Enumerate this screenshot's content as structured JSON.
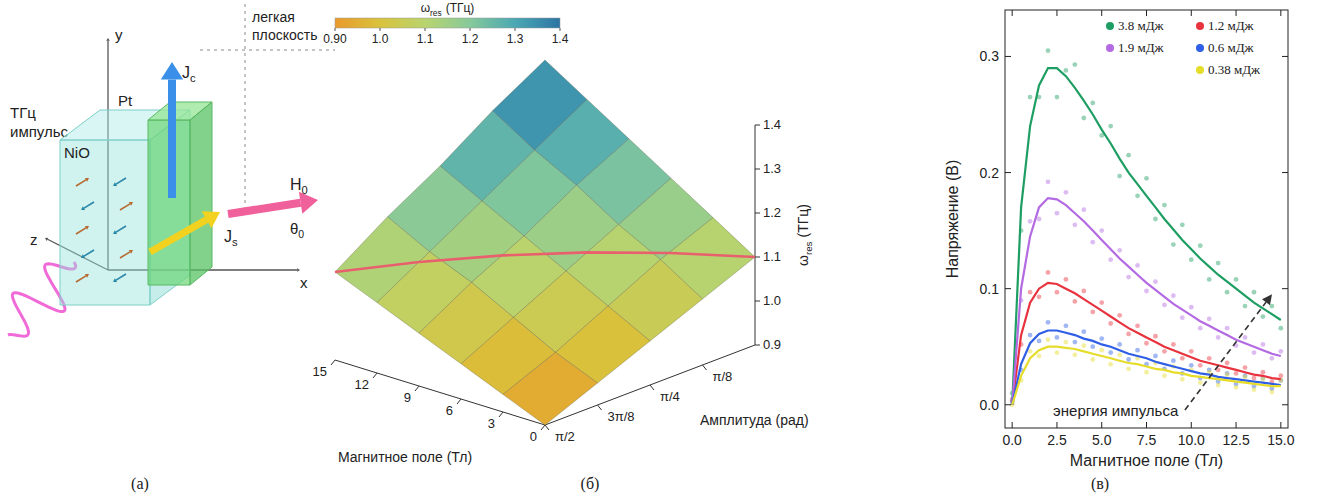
{
  "figure": {
    "panel_labels": [
      "(а)",
      "(б)",
      "(в)"
    ]
  },
  "diagram": {
    "source_label": "ТГц импульс",
    "layers": [
      "NiO",
      "Pt"
    ],
    "plane_label": "легкая плоскость",
    "axes": [
      "x",
      "y",
      "z"
    ],
    "vectors": [
      {
        "main": "J",
        "sub": "c"
      },
      {
        "main": "J",
        "sub": "s"
      },
      {
        "main": "H",
        "sub": "0"
      }
    ],
    "angle": {
      "main": "θ",
      "sub": "0"
    }
  },
  "chart_data": [
    {
      "type": "surface",
      "xlabel": "Магнитное поле (Тл)",
      "xlim": [
        0,
        15
      ],
      "xticks": [
        0,
        3,
        6,
        9,
        12,
        15
      ],
      "ylabel": "Амплитуда (рад)",
      "ylim": [
        0,
        1.5708
      ],
      "yticks": [
        {
          "value": 0.3927,
          "label": "π/8"
        },
        {
          "value": 0.7854,
          "label": "π/4"
        },
        {
          "value": 1.1781,
          "label": "3π/8"
        },
        {
          "value": 1.5708,
          "label": "π/2"
        }
      ],
      "zlabel": {
        "symbol": "ω",
        "sub": "res",
        "unit": "(ТГц)"
      },
      "zlim": [
        0.9,
        1.4
      ],
      "zticks": [
        0.9,
        {
          "value": 1.0,
          "label": "1.0"
        },
        1.1,
        1.2,
        1.3,
        1.4
      ],
      "x": [
        0,
        3,
        6,
        9,
        12,
        15
      ],
      "y": [
        0,
        0.3927,
        0.7854,
        1.1781,
        1.5708
      ],
      "surface": [
        [
          1.1,
          1.16,
          1.22,
          1.28,
          1.34,
          1.4
        ],
        [
          1.05,
          1.11,
          1.16,
          1.22,
          1.27,
          1.33
        ],
        [
          1.0,
          1.05,
          1.1,
          1.15,
          1.2,
          1.25
        ],
        [
          0.95,
          0.99,
          1.04,
          1.09,
          1.13,
          1.18
        ],
        [
          0.9,
          0.94,
          0.98,
          1.02,
          1.06,
          1.1
        ]
      ],
      "line": {
        "color": "#e8606e",
        "x": [
          15,
          12,
          9,
          6,
          3,
          0
        ],
        "y": [
          1.5708,
          1.2566,
          0.9425,
          0.6283,
          0.3142,
          0
        ],
        "z": [
          1.1,
          1.116,
          1.124,
          1.124,
          1.116,
          1.1
        ]
      },
      "colorbar": {
        "label": {
          "symbol": "ω",
          "sub": "res",
          "unit": "(ТГц)"
        },
        "range": [
          0.9,
          1.4
        ],
        "ticks": [
          {
            "value": 0.9,
            "label": "0.90"
          },
          {
            "value": 1.0,
            "label": "1.0"
          },
          1.1,
          1.2,
          1.3,
          1.4
        ]
      }
    },
    {
      "type": "scatter",
      "xlabel": "Магнитное поле (Тл)",
      "ylabel": "Напряжение (В)",
      "xlim": [
        -0.4,
        15.4
      ],
      "xticks": [
        {
          "value": 0,
          "label": "0.0"
        },
        2.5,
        {
          "value": 5,
          "label": "5.0"
        },
        7.5,
        {
          "value": 10,
          "label": "10.0"
        },
        12.5,
        {
          "value": 15,
          "label": "15.0"
        }
      ],
      "ylim": [
        -0.02,
        0.34
      ],
      "yticks": [
        {
          "value": 0,
          "label": "0.0"
        },
        0.1,
        0.2,
        0.3
      ],
      "legend": "upper right",
      "annotation": "энергия импульса",
      "x": [
        0,
        0.5,
        1,
        1.5,
        2,
        2.5,
        3,
        3.5,
        4,
        4.5,
        5,
        5.5,
        6,
        6.5,
        7,
        7.5,
        8,
        8.5,
        9,
        9.5,
        10,
        10.5,
        11,
        11.5,
        12,
        12.5,
        13,
        13.5,
        14,
        14.5,
        15
      ],
      "series": [
        {
          "name": "3.8 мДж",
          "color": "#1e9e62",
          "marker": "circle",
          "values": [
            0.01,
            0.15,
            0.265,
            0.265,
            0.305,
            0.265,
            0.288,
            0.293,
            0.247,
            0.26,
            0.232,
            0.24,
            0.197,
            0.215,
            0.18,
            0.195,
            0.16,
            0.172,
            0.138,
            0.155,
            0.125,
            0.137,
            0.108,
            0.122,
            0.097,
            0.108,
            0.085,
            0.097,
            0.076,
            0.085,
            0.066
          ],
          "fit": [
            0,
            0.17,
            0.24,
            0.275,
            0.29,
            0.29,
            0.283,
            0.273,
            0.262,
            0.25,
            0.237,
            0.225,
            0.212,
            0.2,
            0.19,
            0.18,
            0.17,
            0.16,
            0.151,
            0.142,
            0.134,
            0.126,
            0.119,
            0.112,
            0.106,
            0.1,
            0.094,
            0.088,
            0.083,
            0.078,
            0.073
          ]
        },
        {
          "name": "1.2 мДж",
          "color": "#e8333f",
          "marker": "circle",
          "values": [
            0.004,
            0.052,
            0.097,
            0.093,
            0.114,
            0.097,
            0.108,
            0.089,
            0.098,
            0.08,
            0.088,
            0.07,
            0.077,
            0.061,
            0.068,
            0.053,
            0.059,
            0.046,
            0.052,
            0.04,
            0.046,
            0.034,
            0.04,
            0.03,
            0.036,
            0.027,
            0.032,
            0.023,
            0.028,
            0.02,
            0.025
          ],
          "fit": [
            0,
            0.06,
            0.088,
            0.1,
            0.105,
            0.104,
            0.1,
            0.096,
            0.091,
            0.086,
            0.081,
            0.076,
            0.071,
            0.066,
            0.062,
            0.058,
            0.054,
            0.05,
            0.047,
            0.044,
            0.041,
            0.038,
            0.036,
            0.034,
            0.032,
            0.03,
            0.028,
            0.026,
            0.025,
            0.023,
            0.022
          ]
        },
        {
          "name": "1.9 мДж",
          "color": "#b36ae2",
          "marker": "circle",
          "values": [
            0.005,
            0.09,
            0.158,
            0.16,
            0.192,
            0.165,
            0.183,
            0.155,
            0.168,
            0.14,
            0.15,
            0.125,
            0.133,
            0.11,
            0.12,
            0.098,
            0.106,
            0.086,
            0.094,
            0.075,
            0.084,
            0.066,
            0.074,
            0.058,
            0.066,
            0.051,
            0.058,
            0.045,
            0.052,
            0.04,
            0.046
          ],
          "fit": [
            0,
            0.1,
            0.145,
            0.17,
            0.178,
            0.177,
            0.172,
            0.165,
            0.158,
            0.15,
            0.142,
            0.134,
            0.126,
            0.119,
            0.112,
            0.105,
            0.099,
            0.093,
            0.087,
            0.082,
            0.077,
            0.072,
            0.068,
            0.064,
            0.06,
            0.056,
            0.053,
            0.05,
            0.047,
            0.044,
            0.042
          ]
        },
        {
          "name": "0.6 мДж",
          "color": "#2f5fe6",
          "marker": "circle",
          "values": [
            0.002,
            0.03,
            0.06,
            0.055,
            0.071,
            0.058,
            0.068,
            0.054,
            0.063,
            0.05,
            0.057,
            0.045,
            0.052,
            0.039,
            0.047,
            0.035,
            0.042,
            0.031,
            0.038,
            0.027,
            0.034,
            0.023,
            0.03,
            0.02,
            0.027,
            0.018,
            0.025,
            0.016,
            0.023,
            0.014,
            0.021
          ],
          "fit": [
            0,
            0.035,
            0.053,
            0.061,
            0.064,
            0.064,
            0.062,
            0.06,
            0.057,
            0.055,
            0.052,
            0.05,
            0.047,
            0.044,
            0.042,
            0.04,
            0.037,
            0.035,
            0.033,
            0.031,
            0.029,
            0.027,
            0.026,
            0.024,
            0.023,
            0.022,
            0.021,
            0.02,
            0.019,
            0.018,
            0.017
          ]
        },
        {
          "name": "0.38 мДж",
          "color": "#e6dc2a",
          "marker": "circle",
          "values": [
            0,
            0.021,
            0.046,
            0.042,
            0.056,
            0.045,
            0.054,
            0.043,
            0.051,
            0.039,
            0.047,
            0.035,
            0.043,
            0.031,
            0.04,
            0.028,
            0.036,
            0.025,
            0.033,
            0.022,
            0.03,
            0.019,
            0.028,
            0.017,
            0.026,
            0.015,
            0.024,
            0.013,
            0.022,
            0.011,
            0.021
          ],
          "fit": [
            0,
            0.025,
            0.04,
            0.047,
            0.05,
            0.05,
            0.049,
            0.048,
            0.046,
            0.044,
            0.042,
            0.04,
            0.038,
            0.036,
            0.035,
            0.033,
            0.031,
            0.03,
            0.028,
            0.027,
            0.025,
            0.024,
            0.023,
            0.022,
            0.021,
            0.02,
            0.019,
            0.018,
            0.017,
            0.016,
            0.016
          ]
        }
      ]
    }
  ]
}
